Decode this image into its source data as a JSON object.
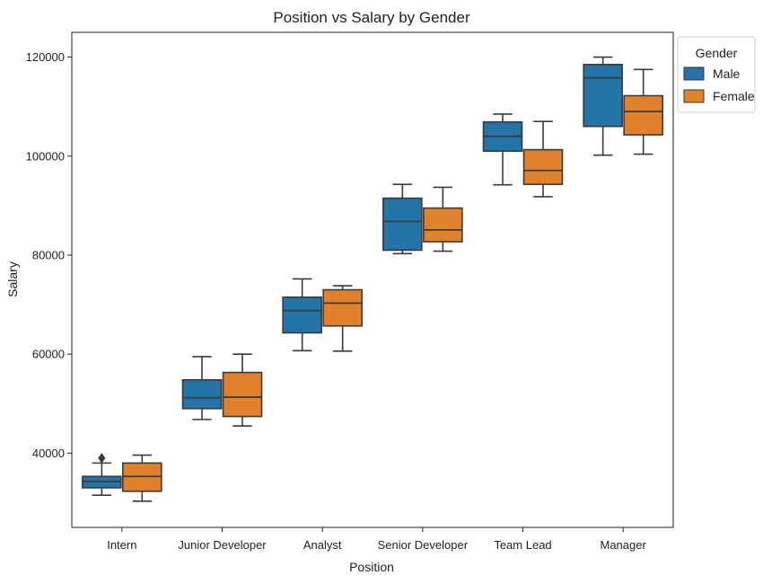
{
  "chart_data": {
    "type": "box",
    "title": "Position vs Salary by Gender",
    "xlabel": "Position",
    "ylabel": "Salary",
    "categories": [
      "Intern",
      "Junior Developer",
      "Analyst",
      "Senior Developer",
      "Team Lead",
      "Manager"
    ],
    "yticks": [
      "40000",
      "60000",
      "80000",
      "100000",
      "120000"
    ],
    "ytick_values": [
      40000,
      60000,
      80000,
      100000,
      120000
    ],
    "ylim": [
      25000,
      125000
    ],
    "legend": {
      "title": "Gender",
      "placement": "top-right, outside plot"
    },
    "series": [
      {
        "name": "Male",
        "color": "#2574a9",
        "boxes": [
          {
            "whisker_low": 31500,
            "q1": 33000,
            "median": 34300,
            "q3": 35300,
            "whisker_high": 38000,
            "outliers": [
              39000
            ]
          },
          {
            "whisker_low": 46800,
            "q1": 49000,
            "median": 51200,
            "q3": 54800,
            "whisker_high": 59500,
            "outliers": []
          },
          {
            "whisker_low": 60700,
            "q1": 64300,
            "median": 68800,
            "q3": 71500,
            "whisker_high": 75200,
            "outliers": []
          },
          {
            "whisker_low": 80300,
            "q1": 81000,
            "median": 86800,
            "q3": 91500,
            "whisker_high": 94300,
            "outliers": []
          },
          {
            "whisker_low": 94200,
            "q1": 101000,
            "median": 104000,
            "q3": 106900,
            "whisker_high": 108500,
            "outliers": []
          },
          {
            "whisker_low": 100200,
            "q1": 106000,
            "median": 115800,
            "q3": 118500,
            "whisker_high": 120000,
            "outliers": []
          }
        ]
      },
      {
        "name": "Female",
        "color": "#e1812c",
        "boxes": [
          {
            "whisker_low": 30300,
            "q1": 32300,
            "median": 35300,
            "q3": 38000,
            "whisker_high": 39600,
            "outliers": []
          },
          {
            "whisker_low": 45500,
            "q1": 47400,
            "median": 51300,
            "q3": 56300,
            "whisker_high": 60000,
            "outliers": []
          },
          {
            "whisker_low": 60600,
            "q1": 65700,
            "median": 70300,
            "q3": 73000,
            "whisker_high": 73800,
            "outliers": []
          },
          {
            "whisker_low": 80800,
            "q1": 82700,
            "median": 85100,
            "q3": 89500,
            "whisker_high": 93700,
            "outliers": []
          },
          {
            "whisker_low": 91800,
            "q1": 94300,
            "median": 97100,
            "q3": 101300,
            "whisker_high": 107000,
            "outliers": []
          },
          {
            "whisker_low": 100400,
            "q1": 104300,
            "median": 109000,
            "q3": 112200,
            "whisker_high": 117500,
            "outliers": []
          }
        ]
      }
    ]
  }
}
